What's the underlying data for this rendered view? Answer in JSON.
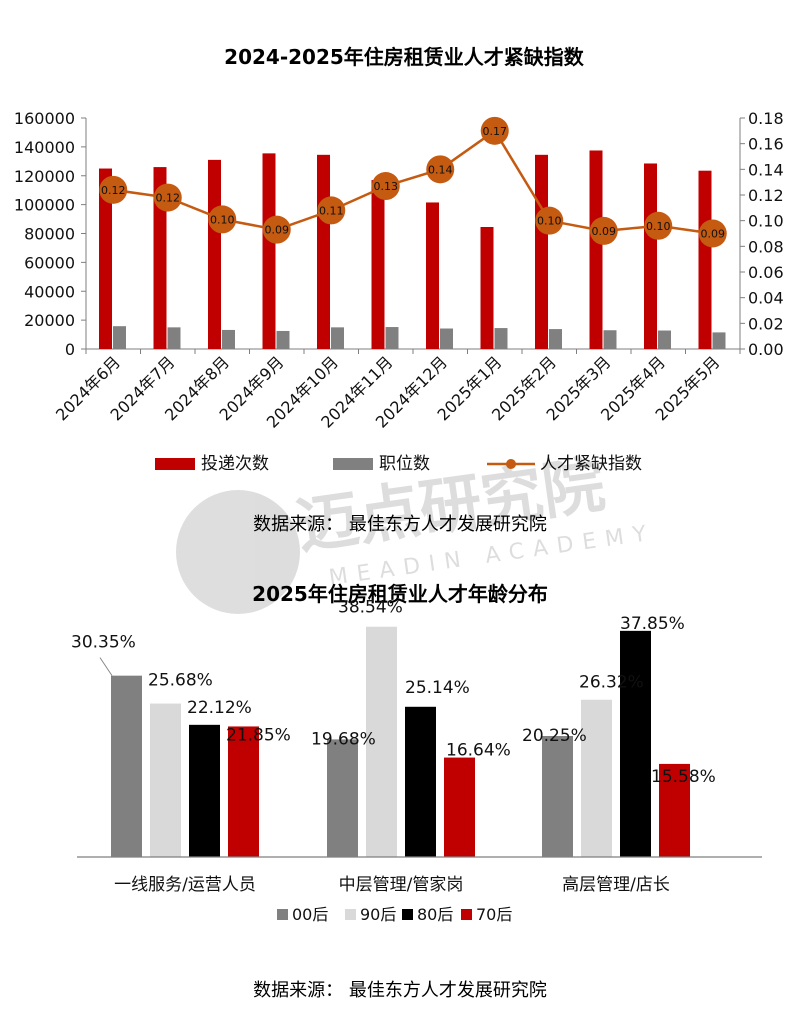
{
  "watermark": {
    "text": "迈点研究院",
    "sub_text": "MEADIN ACADEMY"
  },
  "chart_data": [
    {
      "type": "bar",
      "title": "2024-2025年住房租赁业人才紧缺指数",
      "categories": [
        "2024年6月",
        "2024年7月",
        "2024年8月",
        "2024年9月",
        "2024年10月",
        "2024年11月",
        "2024年12月",
        "2025年1月",
        "2025年2月",
        "2025年3月",
        "2025年4月",
        "2025年5月"
      ],
      "series": [
        {
          "name": "投递次数",
          "kind": "bar",
          "axis": "left",
          "color": "#c00000",
          "values": [
            125000,
            126000,
            131000,
            135500,
            134500,
            117000,
            101500,
            84500,
            134500,
            137500,
            128500,
            123500
          ]
        },
        {
          "name": "职位数",
          "kind": "bar",
          "axis": "left",
          "color": "#808080",
          "values": [
            15800,
            15000,
            13200,
            12500,
            15000,
            15200,
            14200,
            14500,
            13800,
            13000,
            12800,
            11500
          ]
        },
        {
          "name": "人才紧缺指数",
          "kind": "line",
          "axis": "right",
          "color": "#c55a11",
          "values": [
            0.124,
            0.118,
            0.101,
            0.093,
            0.108,
            0.127,
            0.14,
            0.17,
            0.1,
            0.092,
            0.096,
            0.09
          ],
          "labels": [
            "0.12",
            "0.12",
            "0.10",
            "0.09",
            "0.11",
            "0.13",
            "0.14",
            "0.17",
            "0.10",
            "0.09",
            "0.10",
            "0.09"
          ]
        }
      ],
      "y_left": {
        "min": 0,
        "max": 160000,
        "ticks": [
          "0",
          "20000",
          "40000",
          "60000",
          "80000",
          "100000",
          "120000",
          "140000",
          "160000"
        ]
      },
      "y_right": {
        "min": 0,
        "max": 0.18,
        "ticks": [
          "0.00",
          "0.02",
          "0.04",
          "0.06",
          "0.08",
          "0.10",
          "0.12",
          "0.14",
          "0.16",
          "0.18"
        ]
      },
      "legend": [
        "投递次数",
        "职位数",
        "人才紧缺指数"
      ],
      "legend_position": "bottom",
      "source": "数据来源：  最佳东方人才发展研究院"
    },
    {
      "type": "bar",
      "title": "2025年住房租赁业人才年龄分布",
      "categories": [
        "一线服务/运营人员",
        "中层管理/管家岗",
        "高层管理/店长"
      ],
      "series": [
        {
          "name": "00后",
          "color": "#808080",
          "values": [
            30.35,
            19.68,
            20.25
          ]
        },
        {
          "name": "90后",
          "color": "#d9d9d9",
          "values": [
            25.68,
            38.54,
            26.32
          ]
        },
        {
          "name": "80后",
          "color": "#000000",
          "values": [
            22.12,
            25.14,
            37.85
          ]
        },
        {
          "name": "70后",
          "color": "#c00000",
          "values": [
            21.85,
            16.64,
            15.58
          ]
        }
      ],
      "labels": [
        [
          "30.35%",
          "25.68%",
          "22.12%",
          "21.85%"
        ],
        [
          "19.68%",
          "38.54%",
          "25.14%",
          "16.64%"
        ],
        [
          "20.25%",
          "26.32%",
          "37.85%",
          "15.58%"
        ]
      ],
      "y": {
        "min": 0,
        "max": 40
      },
      "legend": [
        "00后",
        "90后",
        "80后",
        "70后"
      ],
      "legend_position": "bottom",
      "source": "数据来源：  最佳东方人才发展研究院"
    }
  ]
}
